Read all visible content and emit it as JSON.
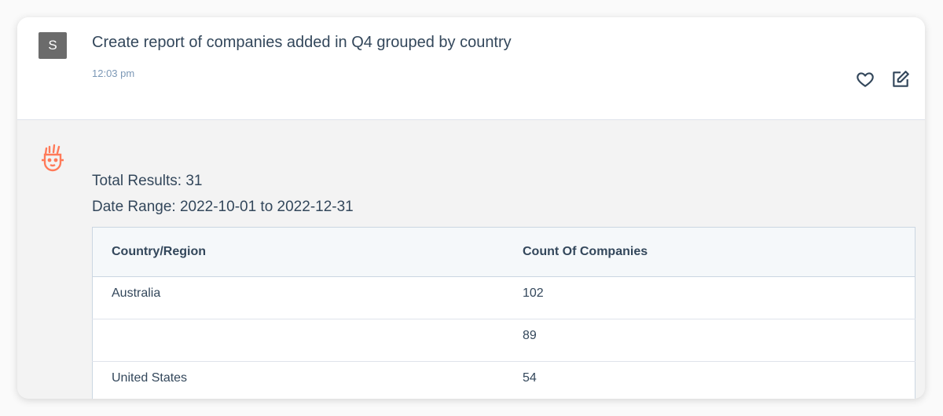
{
  "message": {
    "avatar_initial": "S",
    "prompt": "Create report of companies added in Q4 grouped by country",
    "time": "12:03 pm",
    "actions": [
      {
        "icon": "heart-icon"
      },
      {
        "icon": "edit-icon"
      }
    ]
  },
  "response": {
    "bot_icon": "bot-face-icon",
    "accent": "#ff7a59",
    "total_results": "Total Results: 31",
    "date_range": "Date Range: 2022-10-01 to 2022-12-31",
    "table": {
      "headers": [
        "Country/Region",
        "Count Of Companies"
      ],
      "rows": [
        [
          "Australia",
          "102"
        ],
        [
          "",
          "89"
        ],
        [
          "United States",
          "54"
        ]
      ]
    }
  }
}
